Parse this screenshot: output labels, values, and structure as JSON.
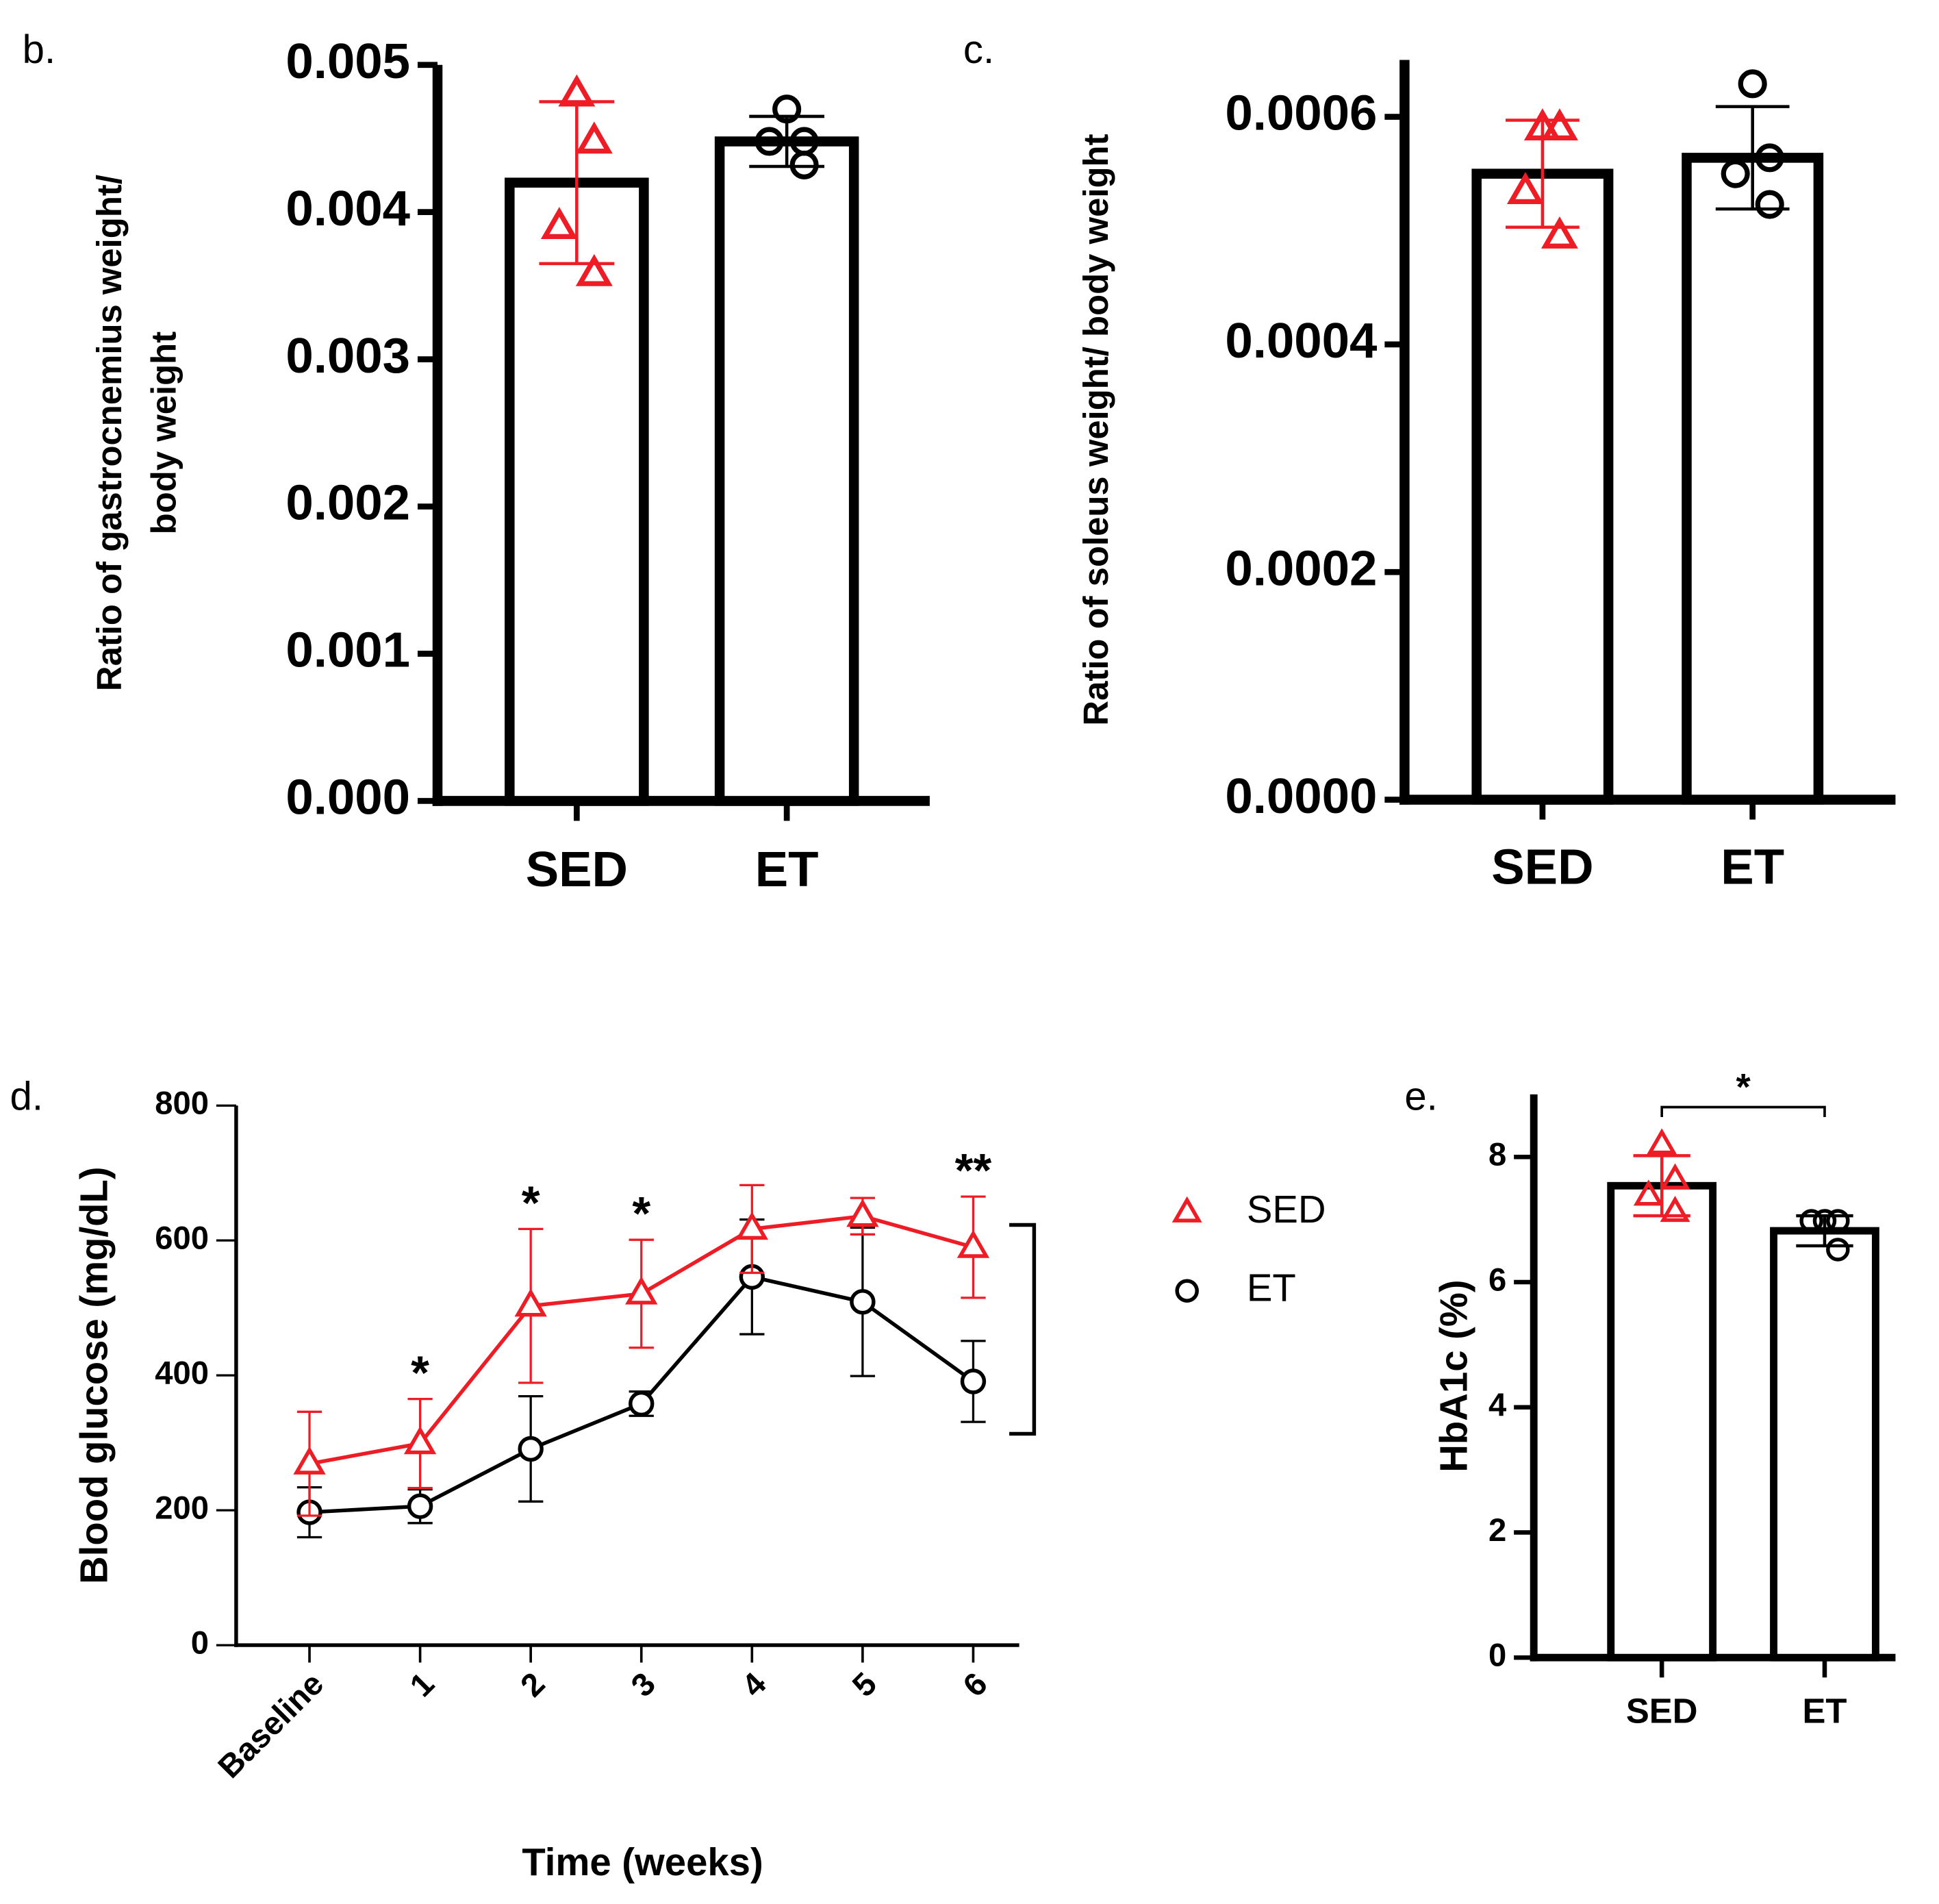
{
  "chart_data": [
    {
      "type": "bar",
      "panel_label": "b.",
      "ylabel": [
        "Ratio of gastrocnemius weight/",
        "body weight"
      ],
      "categories": [
        "SED",
        "ET"
      ],
      "values": [
        0.0042,
        0.00448
      ],
      "errors": [
        0.00055,
        0.00017
      ],
      "points": [
        [
          0.0048,
          0.00448,
          0.0039,
          0.00358
        ],
        [
          0.0047,
          0.00448,
          0.00448,
          0.00432
        ]
      ],
      "colors": [
        "#ee1c25",
        "#000000"
      ],
      "markers": [
        "triangle",
        "circle"
      ],
      "ylim": [
        0,
        0.005
      ],
      "yticks": [
        {
          "value": 0,
          "label": "0.000"
        },
        {
          "value": 0.001,
          "label": "0.001"
        },
        {
          "value": 0.002,
          "label": "0.002"
        },
        {
          "value": 0.003,
          "label": "0.003"
        },
        {
          "value": 0.004,
          "label": "0.004"
        },
        {
          "value": 0.005,
          "label": "0.005"
        }
      ]
    },
    {
      "type": "bar",
      "panel_label": "c.",
      "ylabel": [
        "Ratio of soleus weight/ body weight"
      ],
      "categories": [
        "SED",
        "ET"
      ],
      "values": [
        0.00055,
        0.000564
      ],
      "errors": [
        4.7e-05,
        4.5e-05
      ],
      "points": [
        [
          0.00059,
          0.00059,
          0.000534,
          0.000495
        ],
        [
          0.000629,
          0.000564,
          0.00055,
          0.000523
        ]
      ],
      "colors": [
        "#ee1c25",
        "#000000"
      ],
      "markers": [
        "triangle",
        "circle"
      ],
      "ylim": [
        0,
        0.00065
      ],
      "yticks": [
        {
          "value": 0,
          "label": "0.0000"
        },
        {
          "value": 0.0002,
          "label": "0.0002"
        },
        {
          "value": 0.0004,
          "label": "0.0004"
        },
        {
          "value": 0.0006,
          "label": "0.0006"
        }
      ]
    },
    {
      "type": "line",
      "panel_label": "d.",
      "ylabel": [
        "Blood glucose (mg/dL)"
      ],
      "xlabel": "Time (weeks)",
      "categories": [
        "Baseline",
        "1",
        "2",
        "3",
        "4",
        "5",
        "6"
      ],
      "series": [
        {
          "name": "SED",
          "color": "#ee1c25",
          "marker": "triangle",
          "values": [
            269,
            299,
            503,
            521,
            617,
            636,
            590
          ],
          "errors": [
            77,
            66,
            114,
            80,
            65,
            27,
            75
          ]
        },
        {
          "name": "ET",
          "color": "#000000",
          "marker": "circle",
          "values": [
            197,
            206,
            291,
            358,
            546,
            509,
            391
          ],
          "errors": [
            37,
            25,
            78,
            18,
            85,
            110,
            60
          ]
        }
      ],
      "significance": [
        null,
        "*",
        "*",
        "*",
        null,
        null,
        "**"
      ],
      "ylim": [
        0,
        800
      ],
      "yticks": [
        0,
        200,
        400,
        600,
        800
      ]
    },
    {
      "type": "bar",
      "panel_label": "e.",
      "ylabel": [
        "HbA1c (%)"
      ],
      "categories": [
        "SED",
        "ET"
      ],
      "values": [
        7.54,
        6.82
      ],
      "errors": [
        0.48,
        0.24
      ],
      "points": [
        [
          8.2,
          7.64,
          7.38,
          7.12
        ],
        [
          6.98,
          6.98,
          6.98,
          6.52
        ]
      ],
      "colors": [
        "#ee1c25",
        "#000000"
      ],
      "markers": [
        "triangle",
        "circle"
      ],
      "significance": "*",
      "ylim": [
        0,
        9
      ],
      "yticks": [
        0,
        2,
        4,
        6,
        8
      ]
    }
  ]
}
